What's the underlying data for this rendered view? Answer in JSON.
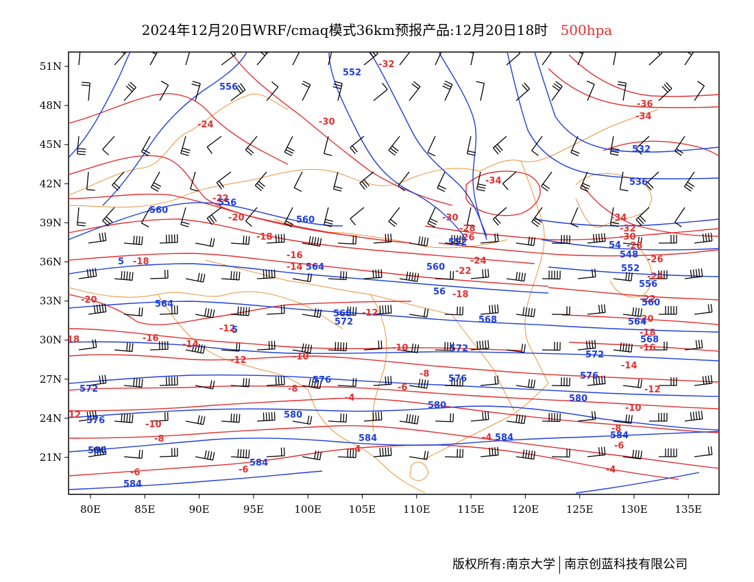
{
  "title": {
    "main": "2024年12月20日WRF/cmaq模式36km预报产品:12月20日18时",
    "level": "500hpa"
  },
  "axes": {
    "lon_labels": [
      "80E",
      "85E",
      "90E",
      "95E",
      "100E",
      "105E",
      "110E",
      "115E",
      "120E",
      "125E",
      "130E",
      "135E"
    ],
    "lat_labels": [
      "51N",
      "48N",
      "45N",
      "42N",
      "39N",
      "36N",
      "33N",
      "30N",
      "27N",
      "24N",
      "21N"
    ]
  },
  "colors": {
    "temperature": "#e03030",
    "height": "#1f3fd8",
    "border": "#e8923a",
    "wind": "#000000"
  },
  "temperature_labels": [
    "-32",
    "-30",
    "-24",
    "-22",
    "-20",
    "-18",
    "-16",
    "-14",
    "-12",
    "-10",
    "-8",
    "-6",
    "-4",
    "-36",
    "-34",
    "-28",
    "-26"
  ],
  "height_labels": [
    "552",
    "556",
    "560",
    "564",
    "568",
    "572",
    "576",
    "580",
    "584",
    "532",
    "536",
    "548"
  ],
  "footer": {
    "left": "版权所有:南京大学",
    "right": "南京创蓝科技有限公司"
  }
}
